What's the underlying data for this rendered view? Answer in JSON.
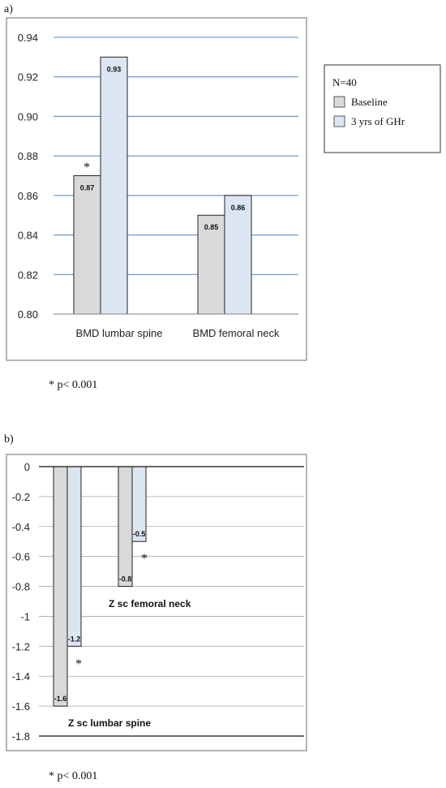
{
  "chart_data": [
    {
      "panel_label": "a)",
      "type": "bar",
      "categories": [
        "BMD lumbar spine",
        "BMD femoral neck"
      ],
      "series": [
        {
          "name": "Baseline",
          "values": [
            0.87,
            0.85
          ],
          "labels": [
            "0.87",
            "0.85"
          ]
        },
        {
          "name": "3 yrs of GHr",
          "values": [
            0.93,
            0.86
          ],
          "labels": [
            "0.93",
            "0.86"
          ]
        }
      ],
      "ylim": [
        0.8,
        0.94
      ],
      "yticks": [
        "0.80",
        "0.82",
        "0.84",
        "0.86",
        "0.88",
        "0.90",
        "0.92",
        "0.94"
      ],
      "grid": true,
      "legend": {
        "title": "N=40",
        "position": "right"
      },
      "annotations": [
        {
          "text": "*",
          "category": 0,
          "series": 0
        }
      ],
      "footnote": "* p< 0.001",
      "colors": {
        "baseline": "#d9d9d9",
        "ghr": "#dce6f2",
        "grid": "#4f81bd"
      }
    },
    {
      "panel_label": "b)",
      "type": "bar",
      "categories": [
        "Z sc  lumbar spine",
        "Z sc femoral neck"
      ],
      "series": [
        {
          "name": "Baseline",
          "values": [
            -1.6,
            -0.8
          ],
          "labels": [
            "-1.6",
            "-0.8"
          ]
        },
        {
          "name": "3 yrs of GHr",
          "values": [
            -1.2,
            -0.5
          ],
          "labels": [
            "-1.2",
            "-0.5"
          ]
        }
      ],
      "ylim": [
        -1.8,
        0
      ],
      "yticks": [
        "0",
        "-0.2",
        "-0.4",
        "-0.6",
        "-0.8",
        "-1",
        "-1.2",
        "-1.4",
        "-1.6",
        "-1.8"
      ],
      "grid": true,
      "annotations": [
        {
          "text": "*",
          "category": 0,
          "series": 1
        },
        {
          "text": "*",
          "category": 1,
          "series": 1
        }
      ],
      "footnote": "* p< 0.001",
      "colors": {
        "baseline": "#d9d9d9",
        "ghr": "#dce6f2",
        "grid": "#a6a6a6"
      }
    }
  ]
}
